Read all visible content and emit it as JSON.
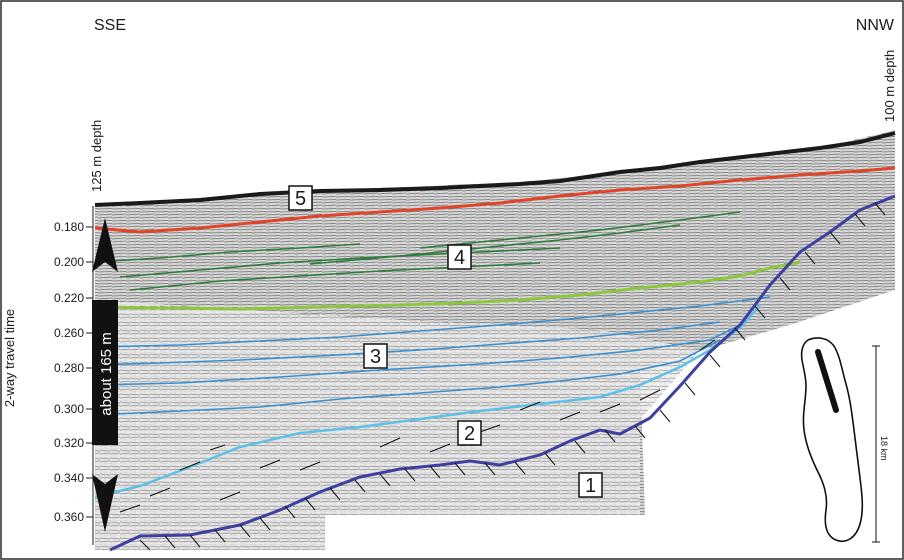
{
  "direction_left": "SSE",
  "direction_right": "NNW",
  "depth_left": "125 m depth",
  "depth_right": "100 m depth",
  "y_axis_label": "2-way travel time",
  "scale_bar_label": "about 165 m",
  "y_ticks": [
    "0.180",
    "0.200",
    "0.220",
    "0.260",
    "0.280",
    "0.300",
    "0.320",
    "0.340",
    "0.360"
  ],
  "units": [
    "1",
    "2",
    "3",
    "4",
    "5"
  ],
  "inset_scale_label": "18 km",
  "colors": {
    "unit5_reflector": "#e0442a",
    "unit4_reflectors": "#2f7d3a",
    "unit4_base": "#8dc63f",
    "unit3_reflectors": "#3a8fd0",
    "unit2_base": "#5cc0e8",
    "unit1_top": "#3f3f9f",
    "seafloor": "#1a1a1a"
  }
}
